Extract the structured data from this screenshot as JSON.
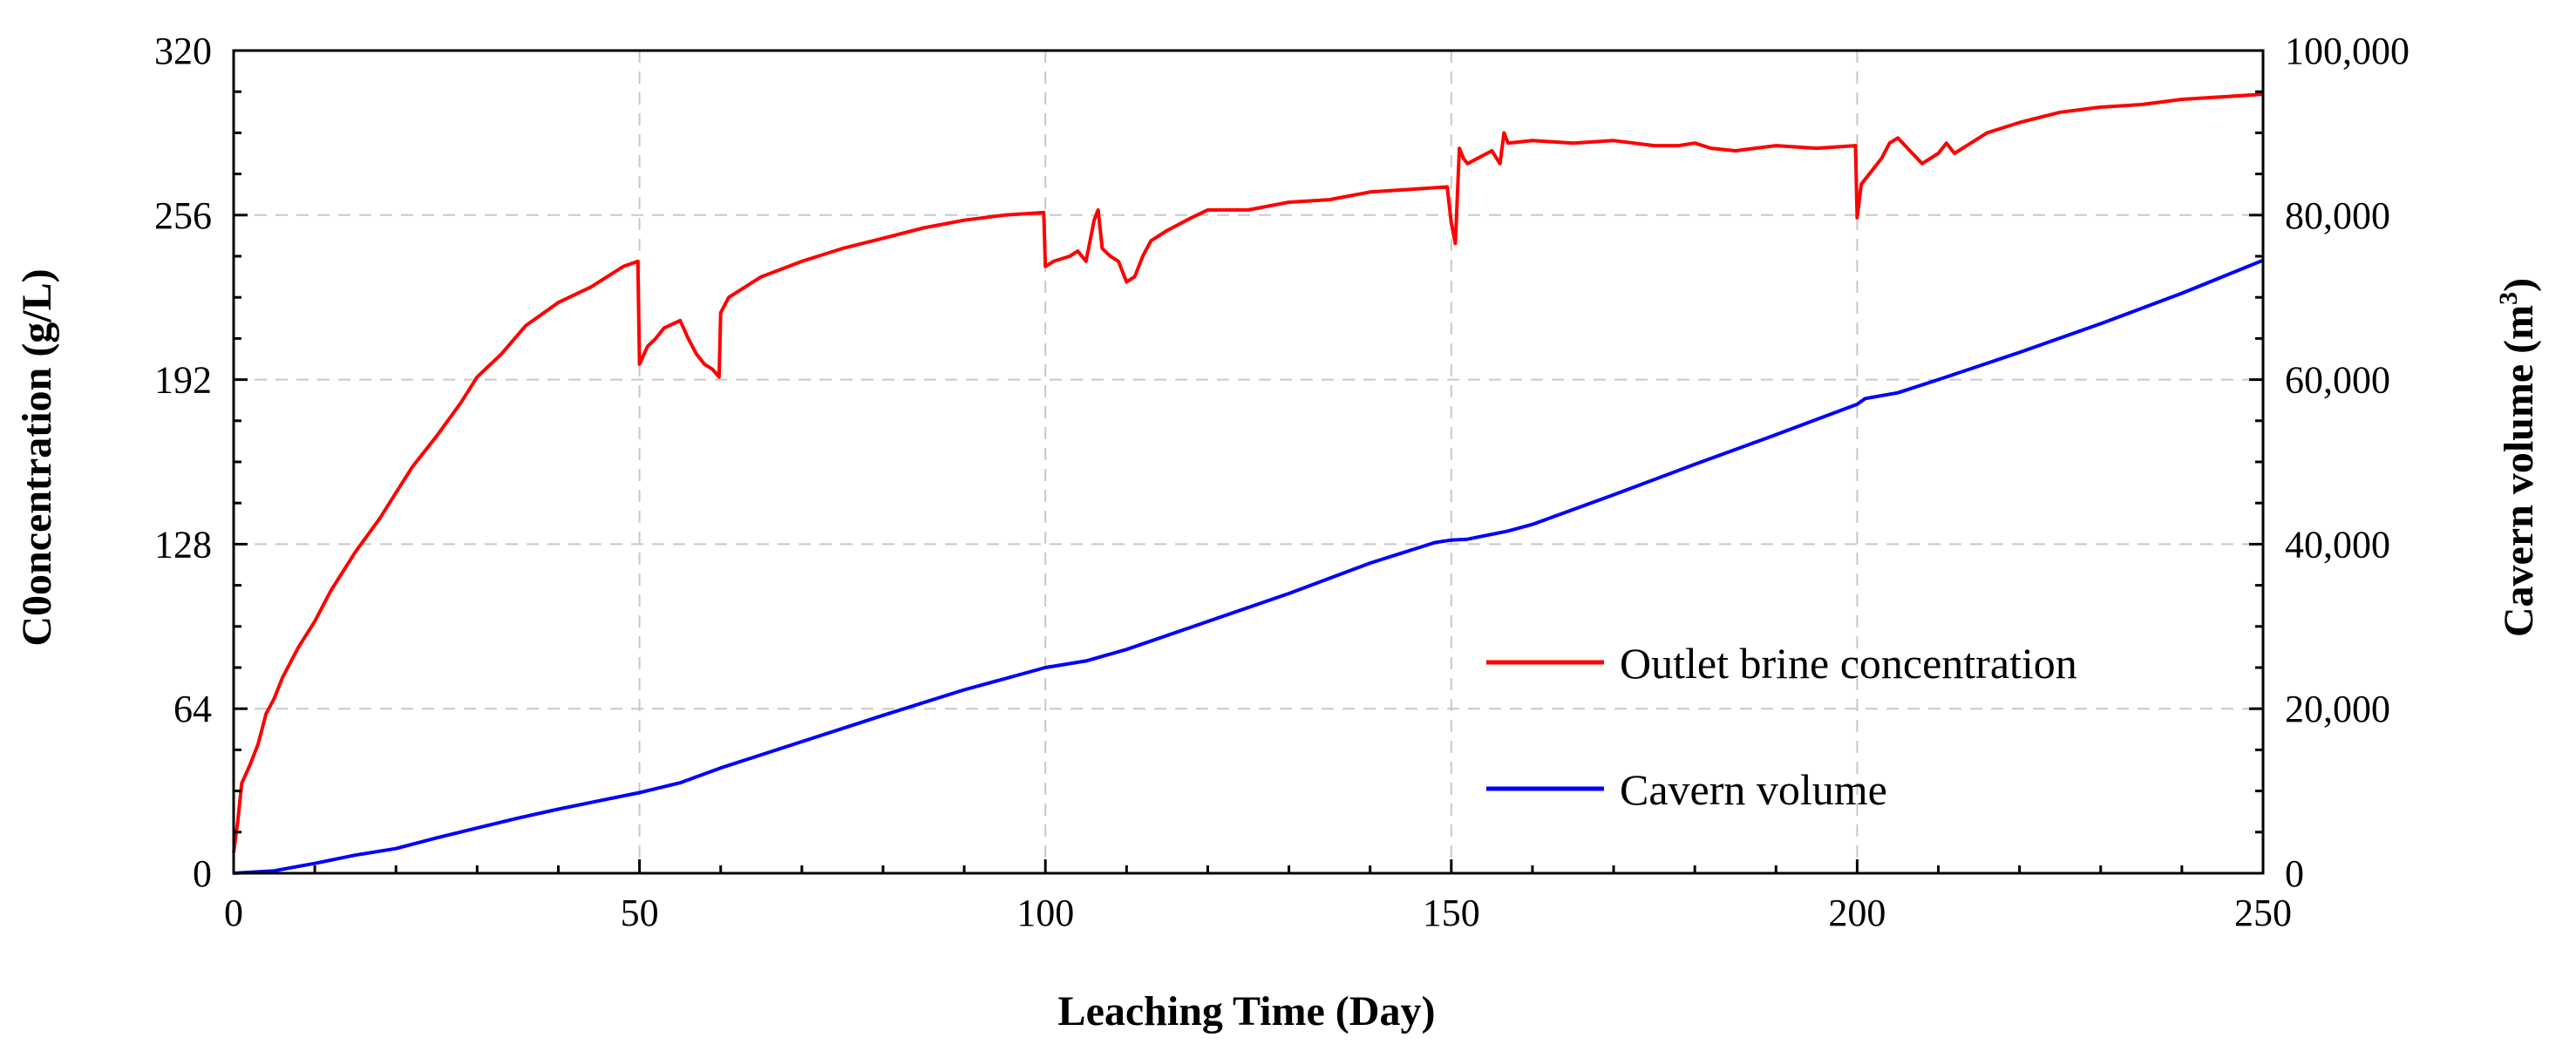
{
  "chart_data": {
    "type": "line",
    "title": "",
    "xlabel": "Leaching Time (Day)",
    "ylabel_left": "C0oncentration (g/L)",
    "ylabel_right_main": "Cavern volume (m",
    "ylabel_right_sup": "3",
    "ylabel_right_close": ")",
    "xlim": [
      0,
      250
    ],
    "ylim_left": [
      0,
      320
    ],
    "ylim_right": [
      0,
      100000
    ],
    "x_ticks": [
      0,
      50,
      100,
      150,
      200,
      250
    ],
    "x_tick_labels": [
      "0",
      "50",
      "100",
      "150",
      "200",
      "250"
    ],
    "y_left_ticks": [
      0,
      64,
      128,
      192,
      256,
      320
    ],
    "y_left_tick_labels": [
      "0",
      "64",
      "128",
      "192",
      "256",
      "320"
    ],
    "y_right_ticks": [
      0,
      20000,
      40000,
      60000,
      80000,
      100000
    ],
    "y_right_tick_labels": [
      "0",
      "20,000",
      "40,000",
      "60,000",
      "80,000",
      "100,000"
    ],
    "grid": true,
    "legend_position": "lower-right",
    "series": [
      {
        "name": "Outlet brine concentration",
        "axis": "left",
        "color": "#ff0000",
        "x": [
          0,
          0.5,
          1,
          2,
          3,
          4,
          5,
          6,
          8,
          10,
          12,
          15,
          18,
          20,
          22,
          25,
          28,
          30,
          33,
          36,
          40,
          44,
          48,
          49.8,
          50,
          51,
          52,
          53,
          55,
          56,
          57,
          58,
          59,
          59.8,
          60,
          61,
          65,
          70,
          75,
          80,
          85,
          90,
          95,
          99.8,
          100,
          101,
          103,
          104,
          105,
          106,
          106.5,
          107,
          108,
          109,
          110,
          111,
          112,
          113,
          115,
          118,
          120,
          125,
          130,
          135,
          140,
          145,
          149.5,
          150,
          150.5,
          151,
          151.5,
          152,
          155,
          156,
          156.5,
          157,
          160,
          165,
          170,
          175,
          178,
          180,
          182,
          185,
          190,
          195,
          199.8,
          200,
          200.5,
          201,
          202,
          203,
          204,
          205,
          208,
          210,
          211,
          212,
          214,
          216,
          220,
          225,
          230,
          235,
          240,
          245,
          250
        ],
        "y": [
          8,
          20,
          35,
          42,
          50,
          62,
          68,
          76,
          88,
          98,
          110,
          125,
          138,
          148,
          158,
          170,
          183,
          193,
          202,
          213,
          222,
          228,
          236,
          238,
          198,
          205,
          208,
          212,
          215,
          208,
          202,
          198,
          196,
          193,
          218,
          224,
          232,
          238,
          243,
          247,
          251,
          254,
          256,
          257,
          236,
          238,
          240,
          242,
          238,
          254,
          258,
          243,
          240,
          238,
          230,
          232,
          240,
          246,
          250,
          255,
          258,
          258,
          261,
          262,
          265,
          266,
          267,
          253,
          245,
          282,
          278,
          276,
          281,
          276,
          288,
          284,
          285,
          284,
          285,
          283,
          283,
          284,
          282,
          281,
          283,
          282,
          283,
          255,
          268,
          270,
          274,
          278,
          284,
          286,
          276,
          280,
          284,
          280,
          284,
          288,
          292,
          296,
          298,
          299,
          301,
          302,
          303
        ]
      },
      {
        "name": "Cavern volume",
        "axis": "right",
        "color": "#0000ff",
        "x": [
          0,
          5,
          10,
          15,
          20,
          25,
          30,
          35,
          40,
          45,
          50,
          55,
          60,
          70,
          80,
          90,
          100,
          105,
          110,
          120,
          130,
          140,
          148,
          150,
          152,
          155,
          157,
          160,
          170,
          180,
          190,
          200,
          201,
          205,
          210,
          220,
          230,
          240,
          250
        ],
        "y": [
          0,
          300,
          1200,
          2200,
          3000,
          4300,
          5500,
          6700,
          7800,
          8800,
          9800,
          11000,
          12800,
          16000,
          19200,
          22300,
          25000,
          25800,
          27200,
          30600,
          34000,
          37700,
          40200,
          40500,
          40600,
          41200,
          41600,
          42400,
          46000,
          49700,
          53300,
          57000,
          57700,
          58400,
          60000,
          63300,
          66800,
          70500,
          74500
        ]
      }
    ]
  }
}
